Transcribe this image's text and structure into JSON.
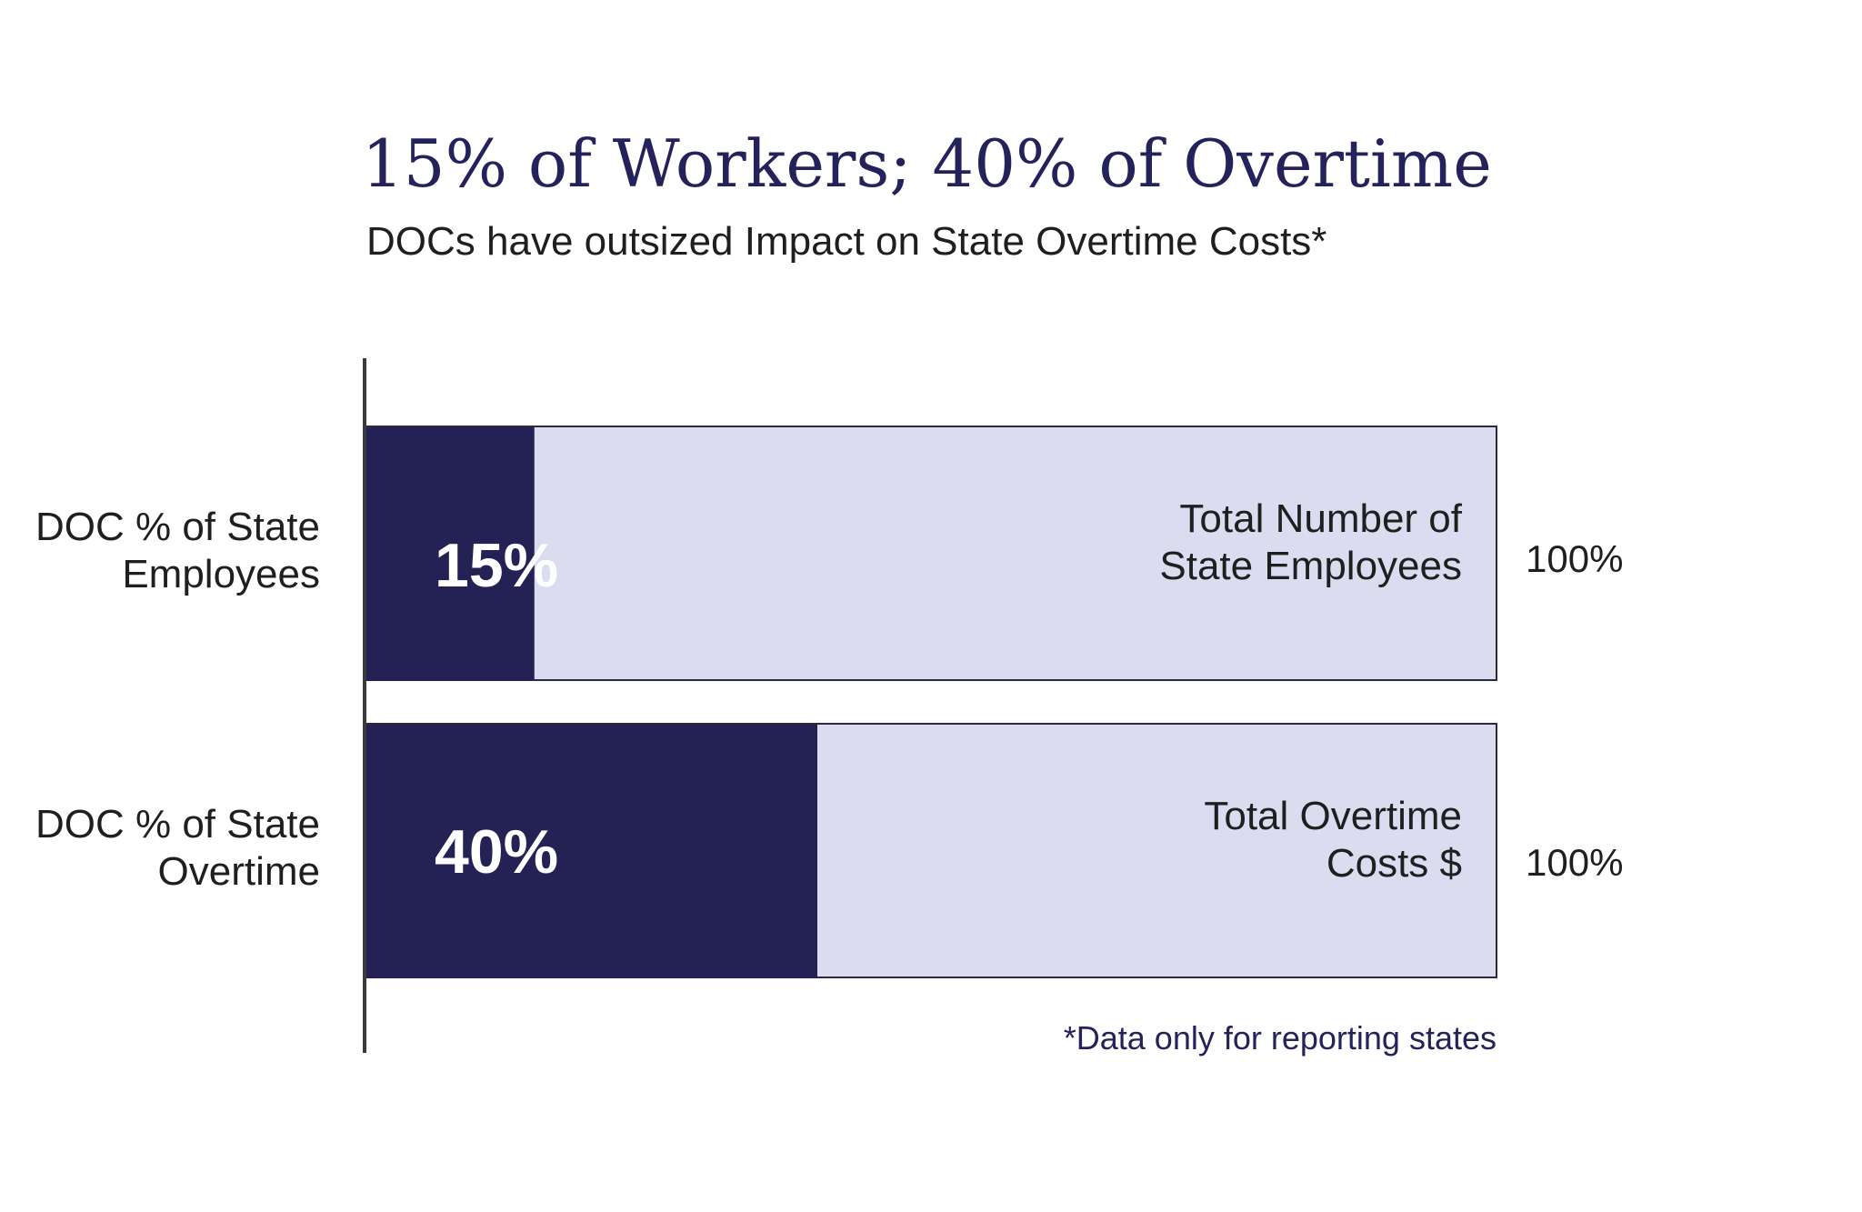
{
  "chart_data": {
    "type": "bar",
    "orientation": "horizontal",
    "title": "15% of Workers; 40% of Overtime",
    "subtitle": "DOCs have outsized Impact on State Overtime Costs*",
    "footnote": "*Data only for reporting states",
    "xlim": [
      0,
      100
    ],
    "categories": [
      [
        "DOC % of State",
        "Employees"
      ],
      [
        "DOC % of State",
        "Overtime"
      ]
    ],
    "series": [
      {
        "values": [
          15,
          40
        ],
        "labels": [
          "15%",
          "40%"
        ],
        "color": "#242255"
      },
      {
        "values": [
          100,
          100
        ],
        "labels": [
          "100%",
          "100%"
        ],
        "inner_labels": [
          [
            "Total Number of",
            "State Employees"
          ],
          [
            "Total Overtime",
            "Costs $"
          ]
        ],
        "color": "#dcdcf0"
      }
    ],
    "axis_color": "#3a3a3a",
    "bar_border_color": "#2a2a3a"
  }
}
